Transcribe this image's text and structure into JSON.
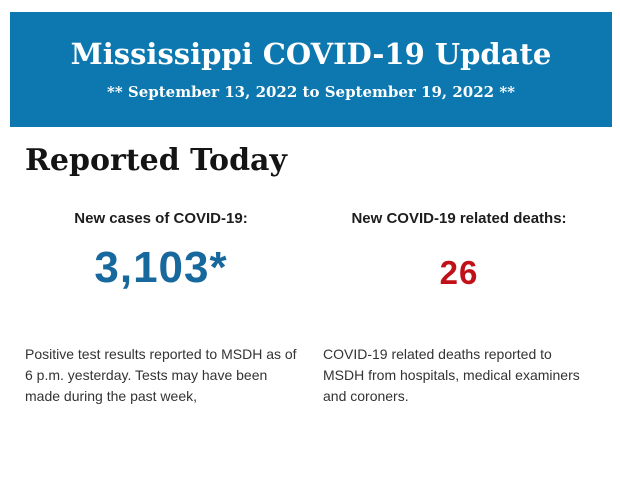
{
  "banner": {
    "title": "Mississippi COVID-19 Update",
    "subtitle": "** September 13, 2022 to September 19, 2022 **",
    "background_color": "#0d78b0",
    "text_color": "#ffffff"
  },
  "main": {
    "heading": "Reported Today",
    "stats": [
      {
        "label": "New cases of COVID-19:",
        "value": "3,103*",
        "value_color": "#17689d",
        "description": "Positive test results reported to MSDH as of 6 p.m. yesterday. Tests may have been made during the past week,"
      },
      {
        "label": "New COVID-19 related deaths:",
        "value": "26",
        "value_color": "#c01118",
        "description": "COVID-19 related deaths reported to MSDH from hospitals, medical examiners and coroners."
      }
    ]
  }
}
